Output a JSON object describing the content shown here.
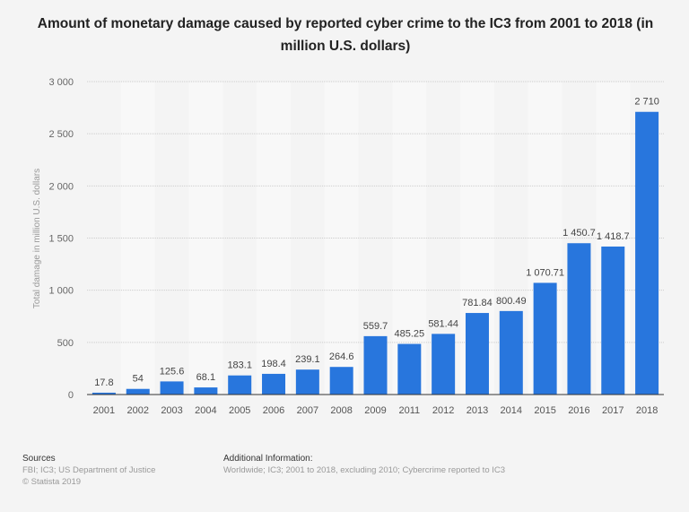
{
  "chart_data": {
    "type": "bar",
    "title": "Amount of monetary damage caused by reported cyber crime to the IC3 from 2001 to 2018 (in million U.S. dollars)",
    "xlabel": "",
    "ylabel": "Total damage in million U.S. dollars",
    "ylim": [
      0,
      3000
    ],
    "yticks": [
      0,
      500,
      1000,
      1500,
      2000,
      2500,
      3000
    ],
    "ytick_labels": [
      "0",
      "500",
      "1 000",
      "1 500",
      "2 000",
      "2 500",
      "3 000"
    ],
    "grid": true,
    "categories": [
      "2001",
      "2002",
      "2003",
      "2004",
      "2005",
      "2006",
      "2007",
      "2008",
      "2009",
      "2011",
      "2012",
      "2013",
      "2014",
      "2015",
      "2016",
      "2017",
      "2018"
    ],
    "values": [
      17.8,
      54,
      125.6,
      68.1,
      183.1,
      198.4,
      239.1,
      264.6,
      559.7,
      485.25,
      581.44,
      781.84,
      800.49,
      1070.71,
      1450.7,
      1418.7,
      2710
    ],
    "data_labels": [
      "17.8",
      "54",
      "125.6",
      "68.1",
      "183.1",
      "198.4",
      "239.1",
      "264.6",
      "559.7",
      "485.25",
      "581.44",
      "781.84",
      "800.49",
      "1 070.71",
      "1 450.7",
      "1 418.7",
      "2 710"
    ],
    "bar_color": "#2876dd"
  },
  "footer": {
    "sources_heading": "Sources",
    "sources_text": "FBI; IC3; US Department of Justice",
    "copyright": "© Statista 2019",
    "additional_heading": "Additional Information:",
    "additional_text": "Worldwide; IC3; 2001 to 2018, excluding 2010; Cybercrime reported to IC3"
  }
}
